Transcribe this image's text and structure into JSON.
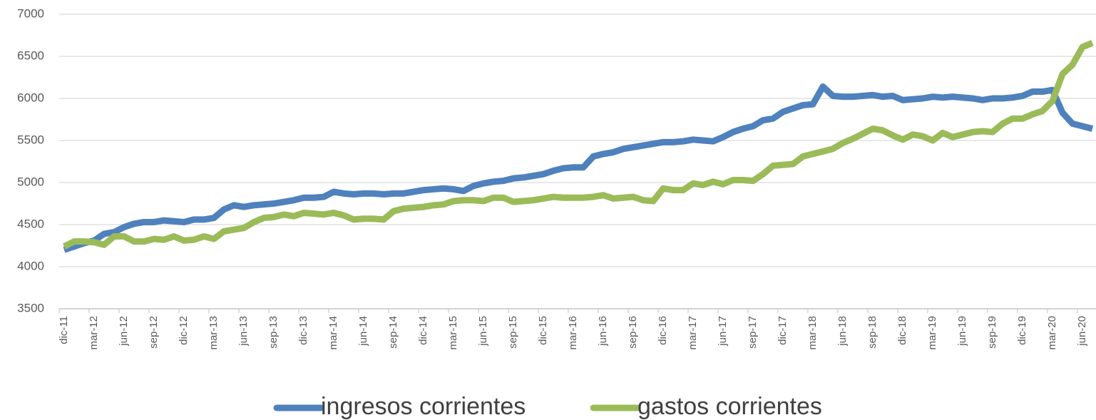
{
  "chart_data": {
    "type": "line",
    "categories": [
      "dic-11",
      null,
      null,
      "mar-12",
      null,
      null,
      "jun-12",
      null,
      null,
      "sep-12",
      null,
      null,
      "dic-12",
      null,
      null,
      "mar-13",
      null,
      null,
      "jun-13",
      null,
      null,
      "sep-13",
      null,
      null,
      "dic-13",
      null,
      null,
      "mar-14",
      null,
      null,
      "jun-14",
      null,
      null,
      "sep-14",
      null,
      null,
      "dic-14",
      null,
      null,
      "mar-15",
      null,
      null,
      "jun-15",
      null,
      null,
      "sep-15",
      null,
      null,
      "dic-15",
      null,
      null,
      "mar-16",
      null,
      null,
      "jun-16",
      null,
      null,
      "sep-16",
      null,
      null,
      "dic-16",
      null,
      null,
      "mar-17",
      null,
      null,
      "jun-17",
      null,
      null,
      "sep-17",
      null,
      null,
      "dic-17",
      null,
      null,
      "mar-18",
      null,
      null,
      "jun-18",
      null,
      null,
      "sep-18",
      null,
      null,
      "dic-18",
      null,
      null,
      "mar-19",
      null,
      null,
      "jun-19",
      null,
      null,
      "sep-19",
      null,
      null,
      "dic-19",
      null,
      null,
      "mar-20",
      null,
      null,
      "jun-20",
      null
    ],
    "series": [
      {
        "name": "ingresos corrientes",
        "color": "#4f81bd",
        "values": [
          4200,
          4240,
          4280,
          4310,
          4390,
          4410,
          4470,
          4510,
          4530,
          4530,
          4550,
          4540,
          4530,
          4560,
          4560,
          4580,
          4680,
          4730,
          4710,
          4730,
          4740,
          4750,
          4770,
          4790,
          4820,
          4820,
          4830,
          4890,
          4870,
          4860,
          4870,
          4870,
          4860,
          4870,
          4870,
          4890,
          4910,
          4920,
          4930,
          4920,
          4900,
          4960,
          4990,
          5010,
          5020,
          5050,
          5060,
          5080,
          5100,
          5140,
          5170,
          5180,
          5180,
          5310,
          5340,
          5360,
          5400,
          5420,
          5440,
          5460,
          5480,
          5480,
          5490,
          5510,
          5500,
          5490,
          5540,
          5600,
          5640,
          5670,
          5740,
          5760,
          5840,
          5880,
          5920,
          5930,
          6140,
          6030,
          6020,
          6020,
          6030,
          6040,
          6020,
          6030,
          5980,
          5990,
          6000,
          6020,
          6010,
          6020,
          6010,
          6000,
          5980,
          6000,
          6000,
          6010,
          6030,
          6080,
          6080,
          6100,
          5830,
          5700,
          5670,
          5640
        ]
      },
      {
        "name": "gastos corrientes",
        "color": "#9bbb59",
        "values": [
          4240,
          4300,
          4300,
          4290,
          4260,
          4360,
          4360,
          4300,
          4300,
          4330,
          4320,
          4360,
          4310,
          4320,
          4360,
          4330,
          4420,
          4440,
          4460,
          4530,
          4580,
          4590,
          4620,
          4600,
          4640,
          4630,
          4620,
          4640,
          4610,
          4560,
          4570,
          4570,
          4560,
          4660,
          4690,
          4700,
          4710,
          4730,
          4740,
          4780,
          4790,
          4790,
          4780,
          4820,
          4820,
          4770,
          4780,
          4790,
          4810,
          4830,
          4820,
          4820,
          4820,
          4830,
          4850,
          4810,
          4820,
          4830,
          4790,
          4780,
          4930,
          4910,
          4910,
          4990,
          4970,
          5010,
          4980,
          5030,
          5030,
          5020,
          5100,
          5200,
          5210,
          5220,
          5310,
          5340,
          5370,
          5400,
          5470,
          5520,
          5580,
          5640,
          5620,
          5560,
          5510,
          5570,
          5550,
          5500,
          5590,
          5540,
          5570,
          5600,
          5610,
          5600,
          5700,
          5760,
          5760,
          5810,
          5850,
          5970,
          6290,
          6400,
          6610,
          6660
        ]
      }
    ],
    "ylim": [
      3500,
      7000
    ],
    "yticks": [
      3500,
      4000,
      4500,
      5000,
      5500,
      6000,
      6500,
      7000
    ],
    "grid": true,
    "legend": "bottom"
  }
}
